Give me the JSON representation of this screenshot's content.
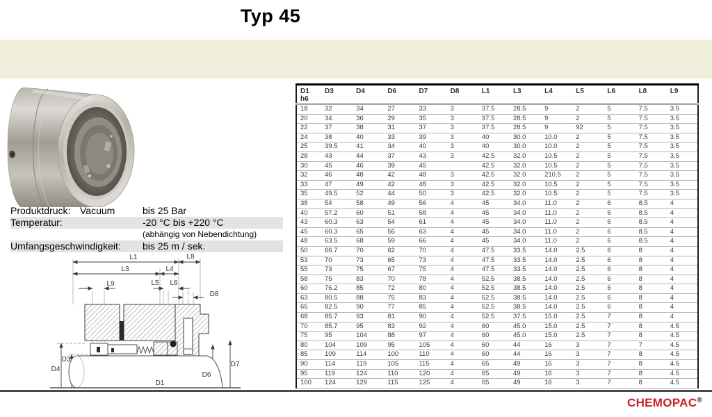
{
  "header": {
    "title": "Typ 45"
  },
  "specs": {
    "rows": [
      {
        "label": "Produktdruck:",
        "middle": "Vacuum",
        "value": "bis 25 Bar"
      },
      {
        "label": "Temperatur:",
        "value": "-20 °C bis +220 °C"
      },
      {
        "label": "",
        "value": "(abhängig von Nebendichtung)"
      },
      {
        "label": "Umfangsgeschwindigkeit:",
        "value": "bis 25 m / sek."
      }
    ]
  },
  "drawing": {
    "labels": {
      "L1": "L1",
      "L3": "L3",
      "L4": "L4",
      "L5": "L5",
      "L6": "L6",
      "L8": "L8",
      "L9": "L9",
      "D8": "D8",
      "D3": "D3",
      "D4": "D4",
      "D1": "D1",
      "D6": "D6",
      "D7": "D7"
    }
  },
  "table": {
    "first_column": {
      "line1": "D1",
      "line2": "h6"
    },
    "columns": [
      "D3",
      "D4",
      "D6",
      "D7",
      "D8",
      "L1",
      "L3",
      "L4",
      "L5",
      "L6",
      "L8",
      "L9"
    ],
    "rows": [
      [
        "18",
        "32",
        "34",
        "27",
        "33",
        "3",
        "37.5",
        "28.5",
        "9",
        "2",
        "5",
        "7.5",
        "3.5"
      ],
      [
        "20",
        "34",
        "36",
        "29",
        "35",
        "3",
        "37.5",
        "28.5",
        "9",
        "2",
        "5",
        "7.5",
        "3.5"
      ],
      [
        "22",
        "37",
        "38",
        "31",
        "37",
        "3",
        "37.5",
        "28.5",
        "9",
        "92",
        "5",
        "7.5",
        "3.5"
      ],
      [
        "24",
        "38",
        "40",
        "33",
        "39",
        "3",
        "40",
        "30.0",
        "10.0",
        "2",
        "5",
        "7.5",
        "3.5"
      ],
      [
        "25",
        "39.5",
        "41",
        "34",
        "40",
        "3",
        "40",
        "30.0",
        "10.0",
        "2",
        "5",
        "7.5",
        "3.5"
      ],
      [
        "28",
        "43",
        "44",
        "37",
        "43",
        "3",
        "42.5",
        "32.0",
        "10.5",
        "2",
        "5",
        "7.5",
        "3.5"
      ],
      [
        "30",
        "45",
        "46",
        "39",
        "45",
        "",
        "42.5",
        "32.0",
        "10.5",
        "2",
        "5",
        "7.5",
        "3.5"
      ],
      [
        "32",
        "46",
        "48",
        "42",
        "48",
        "3",
        "42.5",
        "32.0",
        "210.5",
        "2",
        "5",
        "7.5",
        "3.5"
      ],
      [
        "33",
        "47",
        "49",
        "42",
        "48",
        "3",
        "42.5",
        "32.0",
        "10.5",
        "2",
        "5",
        "7.5",
        "3.5"
      ],
      [
        "35",
        "49.5",
        "52",
        "44",
        "50",
        "3",
        "42.5",
        "32.0",
        "10.5",
        "2",
        "5",
        "7.5",
        "3.5"
      ],
      [
        "38",
        "54",
        "58",
        "49",
        "56",
        "4",
        "45",
        "34.0",
        "11.0",
        "2",
        "6",
        "8.5",
        "4"
      ],
      [
        "40",
        "57.2",
        "60",
        "51",
        "58",
        "4",
        "45",
        "34.0",
        "11.0",
        "2",
        "6",
        "8.5",
        "4"
      ],
      [
        "43",
        "60.3",
        "63",
        "54",
        "61",
        "4",
        "45",
        "34.0",
        "11.0",
        "2",
        "6",
        "8.5",
        "4"
      ],
      [
        "45",
        "60.3",
        "65",
        "56",
        "63",
        "4",
        "45",
        "34.0",
        "11.0",
        "2",
        "6",
        "8.5",
        "4"
      ],
      [
        "48",
        "63.5",
        "68",
        "59",
        "66",
        "4",
        "45",
        "34.0",
        "11.0",
        "2",
        "6",
        "8.5",
        "4"
      ],
      [
        "50",
        "66.7",
        "70",
        "62",
        "70",
        "4",
        "47.5",
        "33.5",
        "14.0",
        "2.5",
        "6",
        "8",
        "4"
      ],
      [
        "53",
        "70",
        "73",
        "65",
        "73",
        "4",
        "47.5",
        "33.5",
        "14.0",
        "2.5",
        "6",
        "8",
        "4"
      ],
      [
        "55",
        "73",
        "75",
        "67",
        "75",
        "4",
        "47.5",
        "33.5",
        "14.0",
        "2.5",
        "6",
        "8",
        "4"
      ],
      [
        "58",
        "75",
        "83",
        "70",
        "78",
        "4",
        "52.5",
        "38.5",
        "14.0",
        "2.5",
        "6",
        "8",
        "4"
      ],
      [
        "60",
        "76.2",
        "85",
        "72",
        "80",
        "4",
        "52.5",
        "38.5",
        "14.0",
        "2.5",
        "6",
        "8",
        "4"
      ],
      [
        "63",
        "80.5",
        "88",
        "75",
        "83",
        "4",
        "52.5",
        "38.5",
        "14.0",
        "2.5",
        "6",
        "8",
        "4"
      ],
      [
        "65",
        "82.5",
        "90",
        "77",
        "85",
        "4",
        "52.5",
        "38.5",
        "14.0",
        "2.5",
        "6",
        "8",
        "4"
      ],
      [
        "68",
        "85.7",
        "93",
        "81",
        "90",
        "4",
        "52.5",
        "37.5",
        "15.0",
        "2.5",
        "7",
        "8",
        "4"
      ],
      [
        "70",
        "85.7",
        "95",
        "83",
        "92",
        "4",
        "60",
        "45.0",
        "15.0",
        "2.5",
        "7",
        "8",
        "4.5"
      ],
      [
        "75",
        "95",
        "104",
        "88",
        "97",
        "4",
        "60",
        "45.0",
        "15.0",
        "2.5",
        "7",
        "8",
        "4.5"
      ],
      [
        "80",
        "104",
        "109",
        "95",
        "105",
        "4",
        "60",
        "44",
        "16",
        "3",
        "7",
        "7",
        "4.5"
      ],
      [
        "85",
        "109",
        "114",
        "100",
        "110",
        "4",
        "60",
        "44",
        "16",
        "3",
        "7",
        "8",
        "4.5"
      ],
      [
        "90",
        "114",
        "119",
        "105",
        "115",
        "4",
        "65",
        "49",
        "16",
        "3",
        "7",
        "8",
        "4.5"
      ],
      [
        "95",
        "119",
        "124",
        "110",
        "120",
        "4",
        "65",
        "49",
        "16",
        "3",
        "7",
        "8",
        "4.5"
      ],
      [
        "100",
        "124",
        "129",
        "115",
        "125",
        "4",
        "65",
        "49",
        "16",
        "3",
        "7",
        "8",
        "4.5"
      ]
    ]
  },
  "footer": {
    "brand": "CHEMOPAC",
    "registered": "®"
  },
  "colors": {
    "band": "#f0eedb",
    "accent_red": "#c9202a",
    "rule": "#4a4a4a",
    "highlight": "#e3e3e3"
  }
}
